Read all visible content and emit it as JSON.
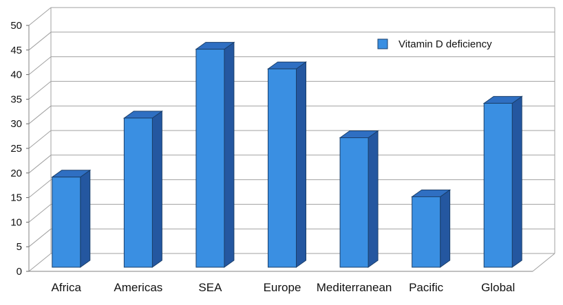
{
  "chart_data": {
    "type": "bar",
    "title": "",
    "xlabel": "",
    "ylabel": "",
    "categories": [
      "Africa",
      "Americas",
      "SEA",
      "Europe",
      "Mediterranean",
      "Pacific",
      "Global"
    ],
    "series": [
      {
        "name": "Vitamin D deficiency",
        "values": [
          20,
          32,
          46,
          42,
          28,
          16,
          35
        ],
        "color": "#3a8fe2"
      }
    ],
    "ylim": [
      0,
      50
    ],
    "yticks": [
      "0",
      "5",
      "10",
      "15",
      "20",
      "25",
      "30",
      "35",
      "40",
      "45",
      "50"
    ],
    "grid": true,
    "legend": "top-right",
    "style": "3d-bar"
  }
}
